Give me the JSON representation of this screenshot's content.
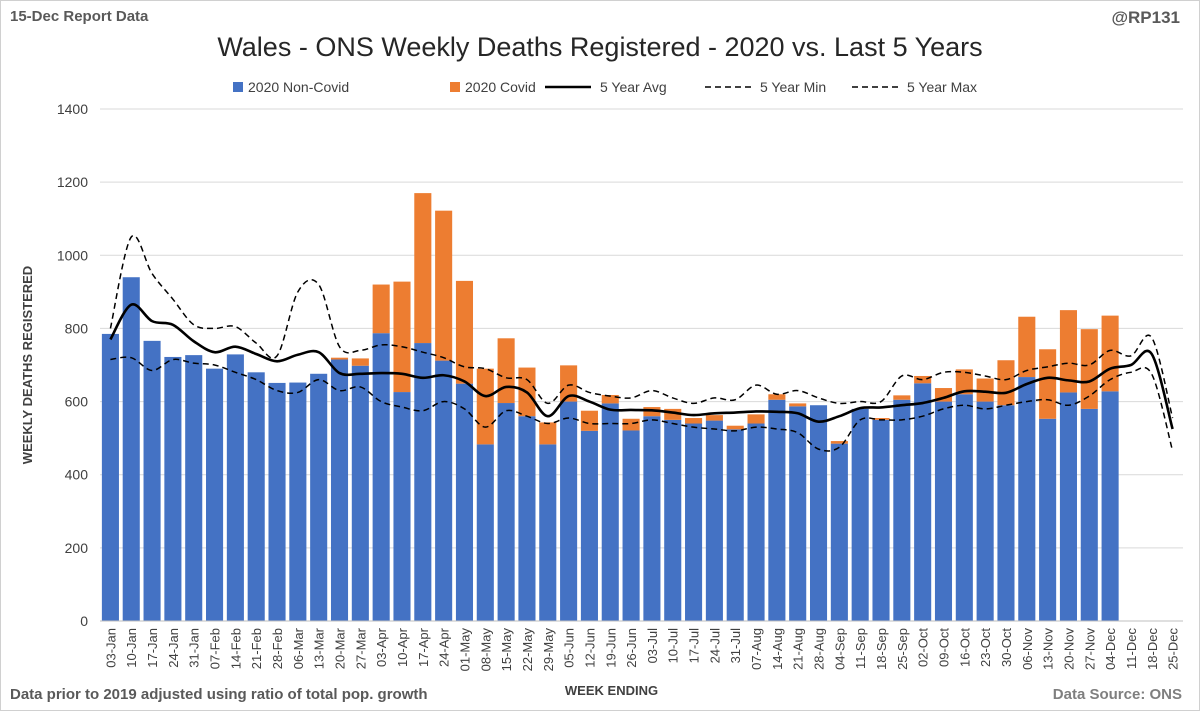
{
  "header": {
    "report_label": "15-Dec Report Data",
    "handle": "@RP131",
    "title": "Wales - ONS Weekly Deaths Registered - 2020 vs. Last 5 Years"
  },
  "footer": {
    "note": "Data prior to 2019 adjusted using ratio of total pop. growth",
    "source": "Data Source: ONS"
  },
  "colors": {
    "non_covid": "#4472C4",
    "covid": "#ED7D31",
    "line": "#000000",
    "grid": "#d9d9d9",
    "axis_text": "#404040"
  },
  "chart_data": {
    "type": "bar",
    "title": "Wales - ONS Weekly Deaths Registered - 2020 vs. Last 5 Years",
    "xlabel": "WEEK ENDING",
    "ylabel": "WEEKLY DEATHS REGISTERED",
    "ylim": [
      0,
      1400
    ],
    "yticks": [
      0,
      200,
      400,
      600,
      800,
      1000,
      1200,
      1400
    ],
    "grid": true,
    "legend_position": "top",
    "categories": [
      "03-Jan",
      "10-Jan",
      "17-Jan",
      "24-Jan",
      "31-Jan",
      "07-Feb",
      "14-Feb",
      "21-Feb",
      "28-Feb",
      "06-Mar",
      "13-Mar",
      "20-Mar",
      "27-Mar",
      "03-Apr",
      "10-Apr",
      "17-Apr",
      "24-Apr",
      "01-May",
      "08-May",
      "15-May",
      "22-May",
      "29-May",
      "05-Jun",
      "12-Jun",
      "19-Jun",
      "26-Jun",
      "03-Jul",
      "10-Jul",
      "17-Jul",
      "24-Jul",
      "31-Jul",
      "07-Aug",
      "14-Aug",
      "21-Aug",
      "28-Aug",
      "04-Sep",
      "11-Sep",
      "18-Sep",
      "25-Sep",
      "02-Oct",
      "09-Oct",
      "16-Oct",
      "23-Oct",
      "30-Oct",
      "06-Nov",
      "13-Nov",
      "20-Nov",
      "27-Nov",
      "04-Dec",
      "11-Dec",
      "18-Dec",
      "25-Dec"
    ],
    "series": [
      {
        "name": "2020 Non-Covid",
        "kind": "bar-stack",
        "values": [
          785,
          940,
          766,
          722,
          727,
          690,
          729,
          680,
          651,
          652,
          676,
          715,
          698,
          787,
          626,
          760,
          712,
          649,
          483,
          596,
          560,
          483,
          600,
          520,
          595,
          521,
          560,
          550,
          540,
          548,
          524,
          540,
          605,
          587,
          590,
          485,
          580,
          550,
          605,
          650,
          600,
          620,
          600,
          590,
          667,
          553,
          625,
          580,
          628,
          null,
          null,
          null
        ]
      },
      {
        "name": "2020 Covid",
        "kind": "bar-stack",
        "values": [
          0,
          0,
          0,
          0,
          0,
          0,
          0,
          0,
          0,
          0,
          0,
          5,
          20,
          133,
          302,
          410,
          410,
          281,
          207,
          177,
          133,
          60,
          99,
          55,
          23,
          32,
          25,
          30,
          15,
          15,
          10,
          25,
          15,
          8,
          0,
          7,
          0,
          5,
          12,
          20,
          37,
          68,
          63,
          123,
          165,
          190,
          225,
          218,
          207,
          null,
          null,
          null
        ]
      },
      {
        "name": "5 Year Avg",
        "kind": "line",
        "style": "solid",
        "values": [
          770,
          865,
          820,
          810,
          765,
          735,
          750,
          730,
          710,
          728,
          735,
          678,
          676,
          678,
          676,
          665,
          672,
          655,
          615,
          640,
          625,
          560,
          615,
          600,
          578,
          577,
          576,
          570,
          563,
          568,
          570,
          573,
          572,
          568,
          545,
          560,
          582,
          584,
          590,
          596,
          610,
          628,
          627,
          624,
          648,
          665,
          658,
          655,
          690,
          700,
          730,
          525
        ]
      },
      {
        "name": "5 Year Min",
        "kind": "line",
        "style": "dashed",
        "values": [
          715,
          720,
          685,
          715,
          705,
          700,
          680,
          660,
          630,
          625,
          660,
          630,
          640,
          600,
          585,
          575,
          600,
          580,
          530,
          575,
          560,
          540,
          555,
          540,
          540,
          540,
          550,
          540,
          530,
          525,
          520,
          530,
          525,
          515,
          470,
          475,
          550,
          550,
          550,
          560,
          580,
          590,
          580,
          590,
          600,
          605,
          590,
          615,
          660,
          680,
          675,
          465
        ]
      },
      {
        "name": "5 Year Max",
        "kind": "line",
        "style": "dashed",
        "values": [
          800,
          1050,
          950,
          880,
          810,
          800,
          805,
          760,
          725,
          900,
          920,
          750,
          740,
          755,
          750,
          735,
          720,
          695,
          690,
          665,
          660,
          595,
          645,
          625,
          615,
          610,
          630,
          610,
          595,
          610,
          605,
          645,
          620,
          630,
          610,
          595,
          600,
          600,
          670,
          660,
          680,
          680,
          670,
          660,
          685,
          695,
          705,
          700,
          740,
          725,
          775,
          555
        ]
      }
    ]
  }
}
